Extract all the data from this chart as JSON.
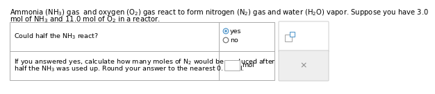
{
  "title_line1": "Ammonia $\\left(\\mathrm{NH_3}\\right)$ gas  and oxygen $\\left(\\mathrm{O_2}\\right)$ gas react to form nitrogen $\\left(\\mathrm{N_2}\\right)$ gas and water $\\left(\\mathrm{H_2O}\\right)$ vapor. Suppose you have 3.0",
  "title_line2": "mol of NH$_3$ and 11.0 mol of O$_2$ in a reactor.",
  "row1_left": "Could half the NH$_3$ react?",
  "row1_right_yes": "yes",
  "row1_right_no": "no",
  "row2_left_line1": "If you answered yes, calculate how many moles of N$_2$ would be produced after",
  "row2_left_line2": "half the NH$_3$ was used up. Round your answer to the nearest 0.1 mol.",
  "row2_right": "mol",
  "bg_color": "#ffffff",
  "table_border_color": "#aaaaaa",
  "text_color": "#000000",
  "title_fontsize": 7.2,
  "cell_fontsize": 6.8,
  "radio_color": "#777777",
  "panel_bg": "#f0f0f0"
}
